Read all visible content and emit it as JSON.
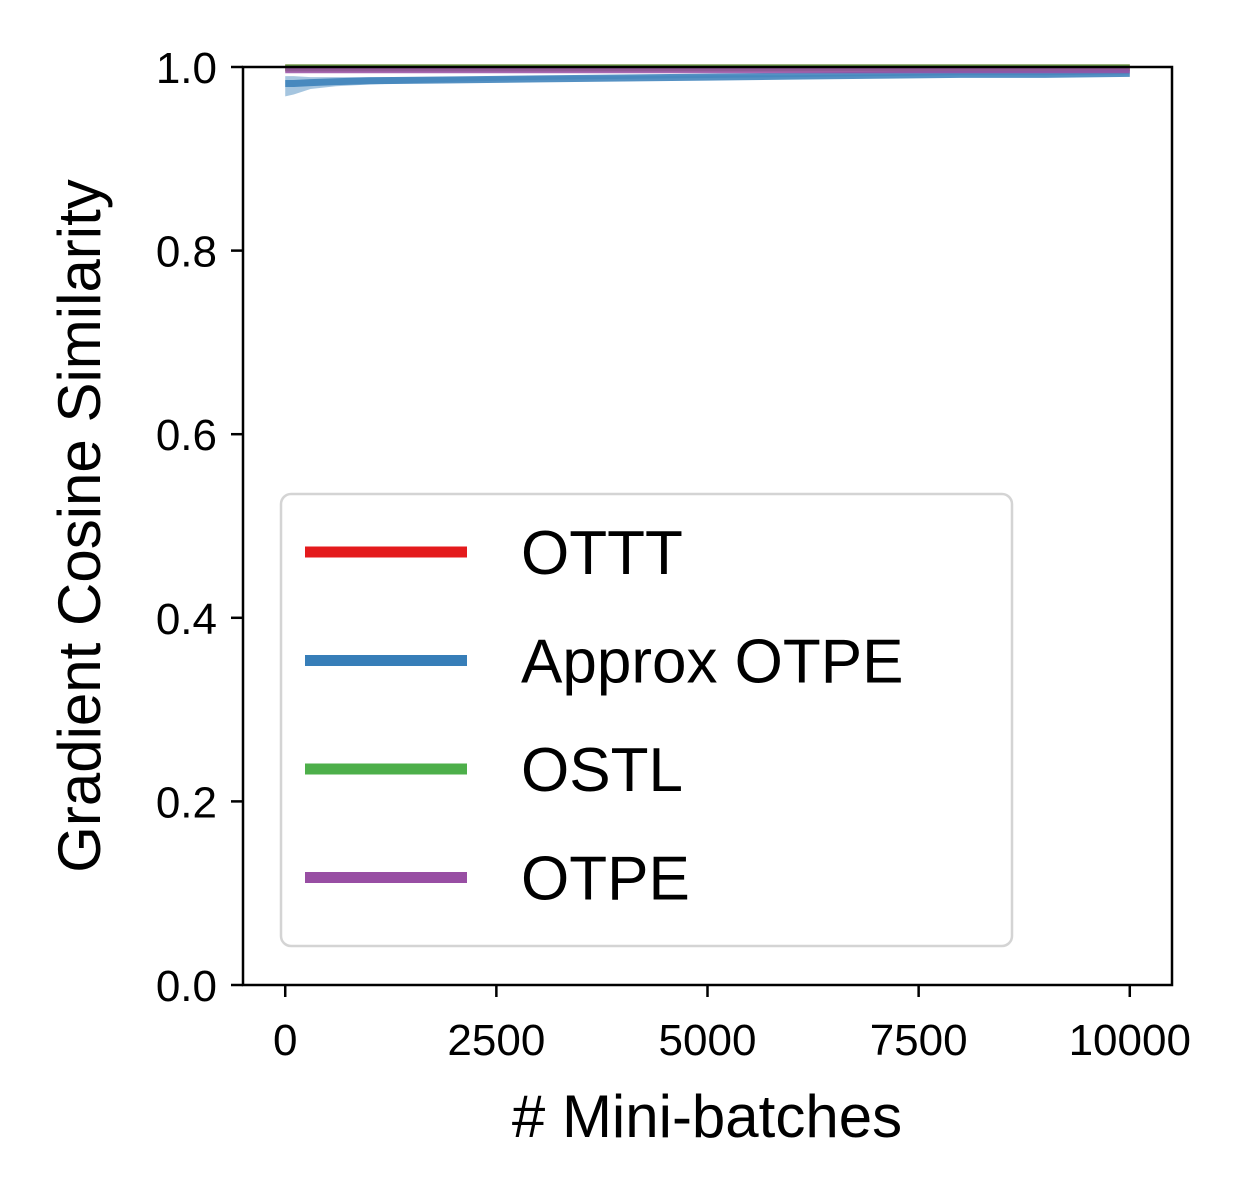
{
  "chart_data": {
    "type": "line",
    "title": "",
    "xlabel": "# Mini-batches",
    "ylabel": "Gradient Cosine Similarity",
    "xlim": [
      -500,
      10500
    ],
    "ylim": [
      0.0,
      1.0
    ],
    "xticks": [
      0,
      2500,
      5000,
      7500,
      10000
    ],
    "xtick_labels": [
      "0",
      "2500",
      "5000",
      "7500",
      "10000"
    ],
    "yticks": [
      0.0,
      0.2,
      0.4,
      0.6,
      0.8,
      1.0
    ],
    "ytick_labels": [
      "0.0",
      "0.2",
      "0.4",
      "0.6",
      "0.8",
      "1.0"
    ],
    "grid": false,
    "legend_position": "lower-left",
    "x": [
      0,
      100,
      300,
      600,
      1000,
      2000,
      3000,
      4000,
      5000,
      6000,
      7000,
      8000,
      9000,
      10000
    ],
    "series": [
      {
        "name": "OTTT",
        "color": "#e41a1c",
        "values": [
          0.999,
          0.999,
          0.999,
          0.999,
          0.999,
          0.999,
          0.999,
          0.999,
          0.999,
          0.999,
          0.999,
          0.999,
          0.999,
          0.999
        ]
      },
      {
        "name": "Approx OTPE",
        "color": "#377eb8",
        "values": [
          0.982,
          0.982,
          0.983,
          0.984,
          0.985,
          0.986,
          0.987,
          0.988,
          0.989,
          0.99,
          0.991,
          0.992,
          0.992,
          0.993
        ]
      },
      {
        "name": "OSTL",
        "color": "#4daf4a",
        "values": [
          0.999,
          0.999,
          0.999,
          0.999,
          0.999,
          0.999,
          0.999,
          0.999,
          0.999,
          0.999,
          0.999,
          0.999,
          0.999,
          0.999
        ]
      },
      {
        "name": "OTPE",
        "color": "#984ea3",
        "values": [
          0.997,
          0.997,
          0.997,
          0.997,
          0.997,
          0.997,
          0.997,
          0.997,
          0.997,
          0.997,
          0.997,
          0.997,
          0.997,
          0.997
        ]
      }
    ],
    "band": {
      "series": "Approx OTPE",
      "lower": [
        0.968,
        0.97,
        0.976,
        0.979,
        0.981,
        0.984,
        0.986,
        0.987,
        0.988,
        0.989,
        0.99,
        0.991,
        0.991,
        0.992
      ],
      "upper": [
        0.99,
        0.99,
        0.989,
        0.989,
        0.989,
        0.989,
        0.99,
        0.99,
        0.991,
        0.991,
        0.992,
        0.993,
        0.993,
        0.994
      ]
    }
  }
}
